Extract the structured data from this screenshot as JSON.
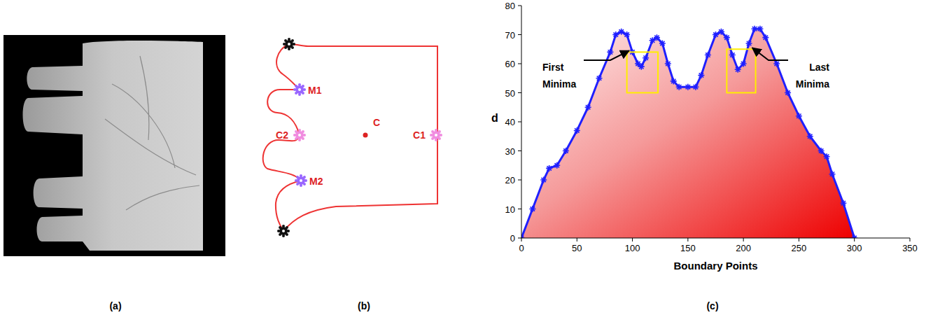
{
  "panels": [
    {
      "label": "(a)"
    },
    {
      "label": "(b)"
    },
    {
      "label": "(c)"
    }
  ],
  "diagram": {
    "points": [
      {
        "label": "M1"
      },
      {
        "label": "C2"
      },
      {
        "label": "M2"
      },
      {
        "label": "C"
      },
      {
        "label": "C1"
      }
    ]
  },
  "chart_data": {
    "type": "area",
    "color": "#1f1fff",
    "marker": "star",
    "xlabel": "Boundary Points",
    "ylabel": "d",
    "x": [
      0,
      10,
      20,
      25,
      32,
      40,
      50,
      60,
      70,
      80,
      85,
      90,
      95,
      100,
      105,
      108,
      112,
      118,
      122,
      127,
      132,
      137,
      142,
      150,
      157,
      162,
      168,
      175,
      180,
      185,
      190,
      195,
      200,
      205,
      210,
      215,
      220,
      230,
      240,
      250,
      260,
      270,
      275,
      280,
      290,
      300
    ],
    "values": [
      0,
      10,
      20,
      24,
      25,
      30,
      37,
      45,
      55,
      64,
      70,
      71,
      70,
      64,
      60,
      59,
      62,
      68,
      69,
      67,
      60,
      54,
      52,
      52,
      52,
      56,
      63,
      70,
      71,
      69,
      63,
      58,
      60,
      67,
      72,
      72,
      69,
      60,
      50,
      42,
      35,
      30,
      28,
      22,
      12,
      0
    ],
    "xlim": [
      0,
      350
    ],
    "ylim": [
      0,
      80
    ],
    "xticks": [
      0,
      50,
      100,
      150,
      200,
      250,
      300,
      350
    ],
    "yticks": [
      0,
      10,
      20,
      30,
      40,
      50,
      60,
      70,
      80
    ],
    "annotations": [
      {
        "text": "First Minima",
        "x": 97,
        "y": 64
      },
      {
        "text": "Last Minima",
        "x": 208,
        "y": 65
      }
    ],
    "highlights": [
      {
        "x": [
          95,
          123
        ],
        "y": [
          50,
          64
        ]
      },
      {
        "x": [
          185,
          211
        ],
        "y": [
          50,
          65
        ]
      }
    ]
  }
}
